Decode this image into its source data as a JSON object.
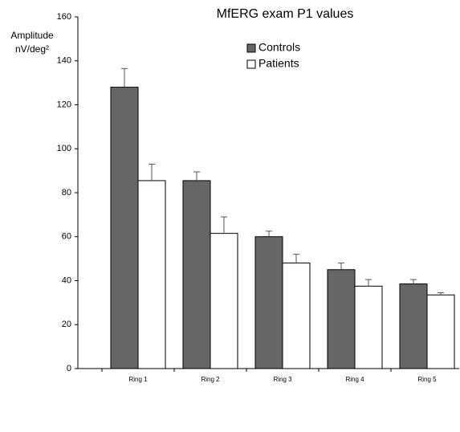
{
  "chart_data": {
    "type": "bar",
    "title": "MfERG exam P1 values",
    "y_label": "Amplitude",
    "y_unit": "nV/deg²",
    "categories": [
      "Ring 1",
      "Ring 2",
      "Ring 3",
      "Ring 4",
      "Ring 5"
    ],
    "series": [
      {
        "name": "Controls",
        "color": "#666666",
        "values": [
          128,
          85.5,
          60,
          45,
          38.5
        ],
        "errors": [
          8.5,
          4,
          2.5,
          3,
          2
        ]
      },
      {
        "name": "Patients",
        "color": "#ffffff",
        "values": [
          85.5,
          61.5,
          48,
          37.5,
          33.5
        ],
        "errors": [
          7.5,
          7.5,
          4,
          3,
          1
        ]
      }
    ],
    "ylim": [
      0,
      160
    ],
    "yticks": [
      0,
      20,
      40,
      60,
      80,
      100,
      120,
      140,
      160
    ],
    "grid": false,
    "legend": "top"
  }
}
